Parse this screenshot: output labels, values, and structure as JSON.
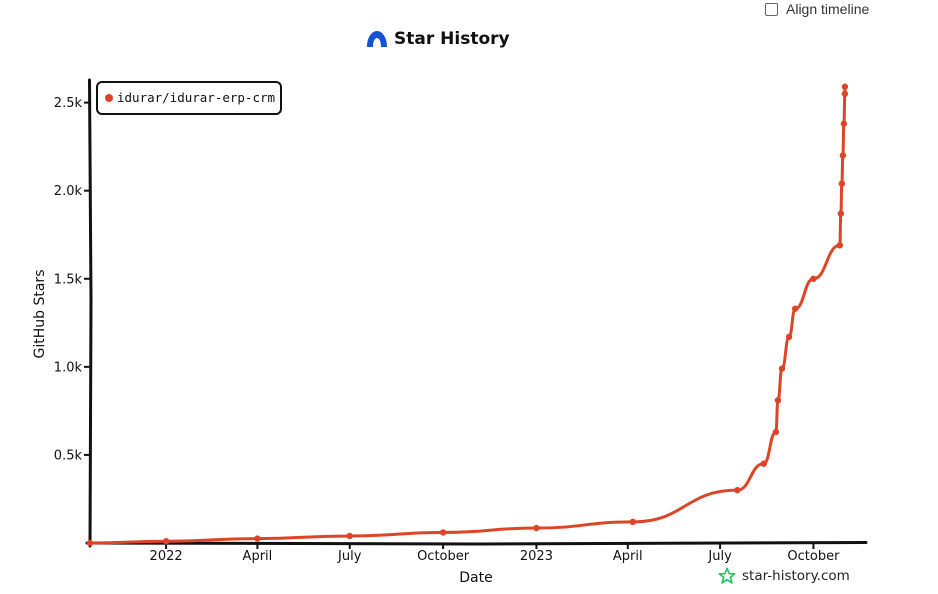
{
  "controls": {
    "align_timeline_label": "Align timeline",
    "align_timeline_checked": false
  },
  "header": {
    "title": "Star History",
    "logo_icon": "star-history-logo-icon"
  },
  "watermark": {
    "text": "star-history.com",
    "icon": "star-outline-icon",
    "color": "#22c55e"
  },
  "chart_data": {
    "type": "line",
    "title": "Star History",
    "xlabel": "Date",
    "ylabel": "GitHub Stars",
    "x_range": [
      "2021-10-18",
      "2023-11-08"
    ],
    "ylim": [
      0,
      2600
    ],
    "x_ticks": [
      {
        "label": "2022",
        "date": "2022-01-01"
      },
      {
        "label": "April",
        "date": "2022-04-01"
      },
      {
        "label": "July",
        "date": "2022-07-01"
      },
      {
        "label": "October",
        "date": "2022-10-01"
      },
      {
        "label": "2023",
        "date": "2023-01-01"
      },
      {
        "label": "April",
        "date": "2023-04-01"
      },
      {
        "label": "July",
        "date": "2023-07-01"
      },
      {
        "label": "October",
        "date": "2023-10-01"
      }
    ],
    "y_ticks": [
      {
        "label": "0.5k",
        "value": 500
      },
      {
        "label": "1.0k",
        "value": 1000
      },
      {
        "label": "1.5k",
        "value": 1500
      },
      {
        "label": "2.0k",
        "value": 2000
      },
      {
        "label": "2.5k",
        "value": 2500
      }
    ],
    "grid": false,
    "legend": "top-left",
    "series": [
      {
        "name": "idurar/idurar-erp-crm",
        "color": "#dd4528",
        "points": [
          {
            "date": "2021-10-18",
            "stars": 0
          },
          {
            "date": "2022-01-01",
            "stars": 10
          },
          {
            "date": "2022-04-01",
            "stars": 25
          },
          {
            "date": "2022-07-01",
            "stars": 40
          },
          {
            "date": "2022-10-01",
            "stars": 60
          },
          {
            "date": "2023-01-01",
            "stars": 85
          },
          {
            "date": "2023-04-06",
            "stars": 120
          },
          {
            "date": "2023-07-18",
            "stars": 300
          },
          {
            "date": "2023-08-13",
            "stars": 450
          },
          {
            "date": "2023-08-25",
            "stars": 630
          },
          {
            "date": "2023-08-27",
            "stars": 810
          },
          {
            "date": "2023-08-31",
            "stars": 990
          },
          {
            "date": "2023-09-07",
            "stars": 1170
          },
          {
            "date": "2023-09-13",
            "stars": 1330
          },
          {
            "date": "2023-10-01",
            "stars": 1500
          },
          {
            "date": "2023-10-27",
            "stars": 1690
          },
          {
            "date": "2023-10-28",
            "stars": 1870
          },
          {
            "date": "2023-10-29",
            "stars": 2040
          },
          {
            "date": "2023-10-30",
            "stars": 2200
          },
          {
            "date": "2023-10-31",
            "stars": 2380
          },
          {
            "date": "2023-11-01",
            "stars": 2550
          },
          {
            "date": "2023-11-01",
            "stars": 2590
          }
        ]
      }
    ]
  }
}
